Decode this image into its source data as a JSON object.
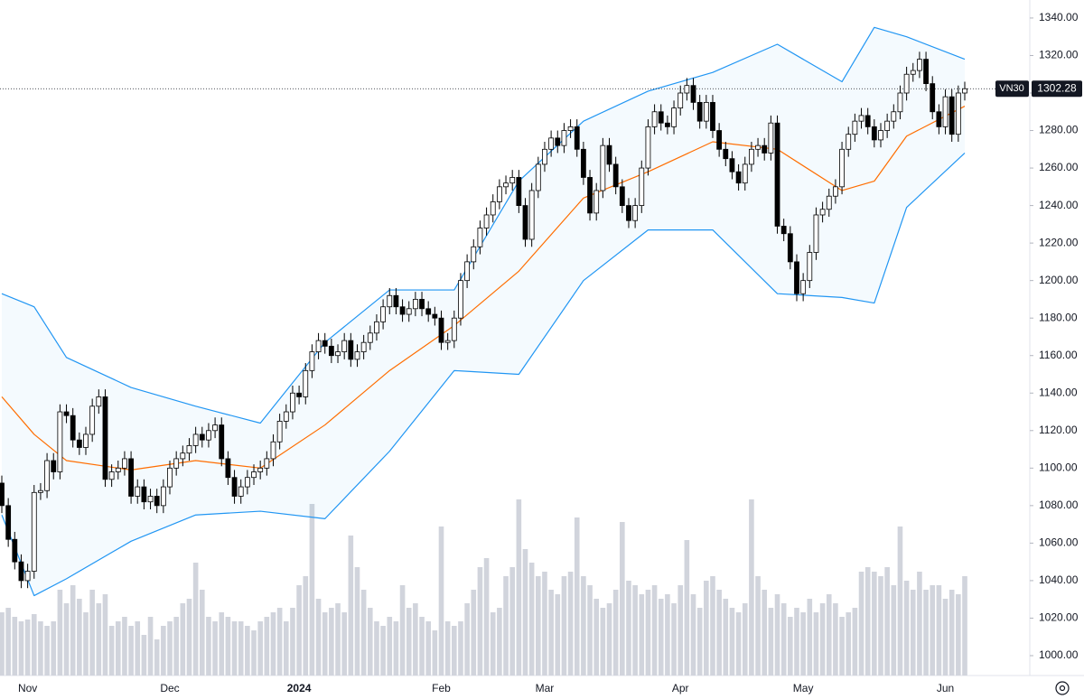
{
  "chart_data": {
    "type": "candlestick",
    "symbol": "VN30",
    "last_value": 1302.28,
    "categories": [
      null,
      null,
      null,
      null,
      "Nov",
      null,
      null,
      null,
      null,
      null,
      null,
      null,
      null,
      null,
      null,
      null,
      null,
      null,
      null,
      null,
      null,
      null,
      null,
      null,
      null,
      null,
      "Dec",
      null,
      null,
      null,
      null,
      null,
      null,
      null,
      null,
      null,
      null,
      null,
      null,
      null,
      null,
      null,
      null,
      null,
      null,
      null,
      "2024",
      null,
      null,
      null,
      null,
      null,
      null,
      null,
      null,
      null,
      null,
      null,
      null,
      null,
      null,
      null,
      null,
      null,
      null,
      null,
      null,
      null,
      "Feb",
      null,
      null,
      null,
      null,
      null,
      null,
      null,
      null,
      null,
      null,
      null,
      null,
      null,
      null,
      null,
      "Mar",
      null,
      null,
      null,
      null,
      null,
      null,
      null,
      null,
      null,
      null,
      null,
      null,
      null,
      null,
      null,
      null,
      null,
      null,
      null,
      null,
      "Apr",
      null,
      null,
      null,
      null,
      null,
      null,
      null,
      null,
      null,
      null,
      null,
      null,
      null,
      null,
      null,
      null,
      null,
      null,
      "May",
      null,
      null,
      null,
      null,
      null,
      null,
      null,
      null,
      null,
      null,
      null,
      null,
      null,
      null,
      null,
      null,
      null,
      null,
      null,
      null,
      null,
      "Jun",
      null,
      null,
      null
    ],
    "open": [
      1092,
      1080,
      1062,
      1050,
      1040,
      1045,
      1087,
      1088,
      1104,
      1098,
      1130,
      1128,
      1115,
      1111,
      1118,
      1133,
      1138,
      1094,
      1098,
      1100,
      1105,
      1085,
      1090,
      1082,
      1085,
      1080,
      1090,
      1100,
      1105,
      1108,
      1112,
      1118,
      1115,
      1120,
      1123,
      1105,
      1095,
      1085,
      1090,
      1095,
      1098,
      1100,
      1105,
      1114,
      1125,
      1130,
      1140,
      1138,
      1152,
      1162,
      1168,
      1165,
      1160,
      1162,
      1168,
      1158,
      1162,
      1167,
      1172,
      1178,
      1186,
      1192,
      1186,
      1182,
      1185,
      1190,
      1185,
      1182,
      1180,
      1167,
      1168,
      1180,
      1200,
      1210,
      1218,
      1228,
      1235,
      1242,
      1250,
      1252,
      1255,
      1240,
      1222,
      1248,
      1262,
      1270,
      1276,
      1272,
      1280,
      1282,
      1270,
      1255,
      1236,
      1248,
      1272,
      1262,
      1250,
      1240,
      1232,
      1240,
      1260,
      1282,
      1290,
      1284,
      1282,
      1292,
      1300,
      1304,
      1295,
      1285,
      1295,
      1280,
      1270,
      1265,
      1258,
      1252,
      1262,
      1270,
      1272,
      1268,
      1284,
      1229,
      1225,
      1210,
      1193,
      1200,
      1215,
      1235,
      1238,
      1245,
      1250,
      1270,
      1278,
      1285,
      1288,
      1282,
      1275,
      1280,
      1285,
      1290,
      1300,
      1310,
      1312,
      1318,
      1305,
      1290,
      1282,
      1298,
      1278,
      1300
    ],
    "high": [
      1096,
      1084,
      1066,
      1054,
      1049,
      1091,
      1092,
      1108,
      1108,
      1134,
      1134,
      1132,
      1119,
      1122,
      1137,
      1142,
      1142,
      1102,
      1104,
      1109,
      1109,
      1094,
      1094,
      1089,
      1089,
      1094,
      1104,
      1109,
      1112,
      1116,
      1122,
      1122,
      1124,
      1127,
      1127,
      1109,
      1099,
      1094,
      1099,
      1102,
      1104,
      1109,
      1118,
      1129,
      1134,
      1144,
      1144,
      1156,
      1166,
      1172,
      1172,
      1169,
      1166,
      1172,
      1172,
      1166,
      1171,
      1176,
      1182,
      1190,
      1196,
      1196,
      1190,
      1189,
      1194,
      1194,
      1189,
      1186,
      1184,
      1172,
      1184,
      1204,
      1214,
      1222,
      1232,
      1239,
      1246,
      1254,
      1256,
      1259,
      1259,
      1244,
      1252,
      1266,
      1274,
      1280,
      1280,
      1284,
      1286,
      1286,
      1274,
      1259,
      1252,
      1276,
      1276,
      1266,
      1254,
      1244,
      1244,
      1264,
      1286,
      1294,
      1294,
      1288,
      1296,
      1304,
      1308,
      1308,
      1299,
      1299,
      1299,
      1284,
      1274,
      1269,
      1262,
      1266,
      1274,
      1276,
      1276,
      1288,
      1288,
      1233,
      1229,
      1214,
      1204,
      1219,
      1239,
      1242,
      1249,
      1254,
      1274,
      1282,
      1289,
      1292,
      1292,
      1286,
      1284,
      1289,
      1294,
      1304,
      1314,
      1316,
      1322,
      1322,
      1309,
      1294,
      1302,
      1302,
      1304,
      1306
    ],
    "low": [
      1076,
      1058,
      1046,
      1036,
      1036,
      1041,
      1083,
      1084,
      1094,
      1094,
      1124,
      1111,
      1107,
      1107,
      1114,
      1129,
      1090,
      1090,
      1094,
      1096,
      1081,
      1081,
      1078,
      1078,
      1076,
      1076,
      1086,
      1096,
      1101,
      1104,
      1108,
      1111,
      1111,
      1116,
      1101,
      1091,
      1081,
      1081,
      1086,
      1091,
      1094,
      1096,
      1101,
      1110,
      1121,
      1126,
      1134,
      1134,
      1148,
      1158,
      1161,
      1156,
      1156,
      1158,
      1154,
      1154,
      1158,
      1163,
      1168,
      1174,
      1182,
      1182,
      1178,
      1178,
      1181,
      1181,
      1178,
      1176,
      1163,
      1163,
      1164,
      1176,
      1196,
      1206,
      1214,
      1224,
      1231,
      1238,
      1246,
      1248,
      1236,
      1218,
      1218,
      1244,
      1258,
      1266,
      1268,
      1268,
      1276,
      1266,
      1251,
      1232,
      1232,
      1244,
      1258,
      1246,
      1236,
      1228,
      1228,
      1236,
      1256,
      1278,
      1280,
      1278,
      1278,
      1288,
      1296,
      1291,
      1281,
      1281,
      1276,
      1266,
      1261,
      1254,
      1248,
      1248,
      1258,
      1266,
      1264,
      1264,
      1225,
      1221,
      1206,
      1189,
      1189,
      1196,
      1211,
      1231,
      1234,
      1241,
      1246,
      1266,
      1274,
      1281,
      1278,
      1271,
      1271,
      1276,
      1281,
      1286,
      1296,
      1306,
      1308,
      1301,
      1286,
      1278,
      1278,
      1274,
      1274,
      1296
    ],
    "close": [
      1080,
      1062,
      1050,
      1040,
      1045,
      1087,
      1088,
      1104,
      1098,
      1130,
      1128,
      1115,
      1111,
      1118,
      1133,
      1138,
      1094,
      1098,
      1100,
      1105,
      1085,
      1090,
      1082,
      1085,
      1080,
      1090,
      1100,
      1105,
      1108,
      1112,
      1118,
      1115,
      1120,
      1123,
      1105,
      1095,
      1085,
      1090,
      1095,
      1098,
      1100,
      1105,
      1114,
      1125,
      1130,
      1140,
      1138,
      1152,
      1162,
      1168,
      1165,
      1160,
      1162,
      1168,
      1158,
      1162,
      1167,
      1172,
      1178,
      1186,
      1192,
      1186,
      1182,
      1185,
      1190,
      1185,
      1182,
      1180,
      1167,
      1168,
      1180,
      1200,
      1210,
      1218,
      1228,
      1235,
      1242,
      1250,
      1252,
      1255,
      1240,
      1222,
      1248,
      1262,
      1270,
      1276,
      1272,
      1280,
      1282,
      1270,
      1255,
      1236,
      1248,
      1272,
      1262,
      1250,
      1240,
      1232,
      1240,
      1260,
      1282,
      1290,
      1284,
      1282,
      1292,
      1300,
      1304,
      1295,
      1285,
      1295,
      1280,
      1270,
      1265,
      1258,
      1252,
      1262,
      1270,
      1272,
      1268,
      1284,
      1229,
      1225,
      1210,
      1193,
      1200,
      1215,
      1235,
      1238,
      1245,
      1250,
      1270,
      1278,
      1285,
      1288,
      1282,
      1275,
      1280,
      1285,
      1290,
      1300,
      1310,
      1312,
      1318,
      1305,
      1290,
      1282,
      1298,
      1278,
      1300,
      1302.28
    ],
    "volume": [
      70,
      75,
      65,
      60,
      62,
      68,
      60,
      55,
      60,
      95,
      80,
      100,
      85,
      70,
      95,
      80,
      90,
      55,
      60,
      65,
      55,
      60,
      45,
      65,
      40,
      55,
      60,
      65,
      80,
      85,
      125,
      95,
      65,
      60,
      70,
      65,
      60,
      60,
      55,
      50,
      60,
      65,
      70,
      75,
      60,
      75,
      100,
      110,
      190,
      85,
      70,
      75,
      80,
      70,
      155,
      120,
      95,
      75,
      60,
      55,
      65,
      60,
      100,
      75,
      80,
      65,
      60,
      50,
      165,
      60,
      55,
      60,
      80,
      95,
      120,
      130,
      70,
      75,
      110,
      120,
      195,
      140,
      125,
      110,
      115,
      95,
      90,
      110,
      115,
      175,
      110,
      100,
      85,
      75,
      80,
      95,
      170,
      105,
      100,
      90,
      95,
      100,
      85,
      90,
      80,
      100,
      150,
      90,
      75,
      105,
      110,
      95,
      85,
      75,
      70,
      80,
      195,
      110,
      95,
      75,
      90,
      80,
      65,
      75,
      70,
      85,
      70,
      80,
      90,
      80,
      65,
      70,
      75,
      115,
      120,
      115,
      110,
      120,
      100,
      165,
      105,
      95,
      115,
      95,
      100,
      100,
      85,
      95,
      90,
      110
    ],
    "volume_lim": [
      0,
      250
    ],
    "volume_color": "#d1d4dc",
    "bollinger": {
      "x": [
        0,
        5,
        10,
        20,
        30,
        40,
        50,
        60,
        70,
        80,
        90,
        100,
        110,
        120,
        130,
        135,
        140,
        149
      ],
      "upper": [
        1193,
        1186,
        1159,
        1143,
        1133,
        1124,
        1167,
        1195,
        1195,
        1253,
        1285,
        1301,
        1311,
        1326,
        1306,
        1335,
        1330,
        1318
      ],
      "middle": [
        1138,
        1118,
        1104,
        1099,
        1104,
        1100,
        1123,
        1152,
        1176,
        1205,
        1244,
        1258,
        1274,
        1270,
        1248,
        1253,
        1277,
        1293
      ],
      "lower": [
        1075,
        1032,
        1041,
        1061,
        1075,
        1077,
        1073,
        1109,
        1152,
        1150,
        1200,
        1227,
        1227,
        1193,
        1191,
        1188,
        1239,
        1268
      ],
      "band_color": "#2196f3",
      "middle_color": "#ff6d00"
    },
    "up_color": "#ffffff",
    "down_color": "#000000",
    "ylim": [
      989.4,
      1349.6
    ],
    "yticks": [
      {
        "value": 1000,
        "label": "1000.00"
      },
      {
        "value": 1020,
        "label": "1020.00"
      },
      {
        "value": 1040,
        "label": "1040.00"
      },
      {
        "value": 1060,
        "label": "1060.00"
      },
      {
        "value": 1080,
        "label": "1080.00"
      },
      {
        "value": 1100,
        "label": "1100.00"
      },
      {
        "value": 1120,
        "label": "1120.00"
      },
      {
        "value": 1140,
        "label": "1140.00"
      },
      {
        "value": 1160,
        "label": "1160.00"
      },
      {
        "value": 1180,
        "label": "1180.00"
      },
      {
        "value": 1200,
        "label": "1200.00"
      },
      {
        "value": 1220,
        "label": "1220.00"
      },
      {
        "value": 1240,
        "label": "1240.00"
      },
      {
        "value": 1260,
        "label": "1260.00"
      },
      {
        "value": 1280,
        "label": "1280.00"
      },
      {
        "value": 1300,
        "label": "1300.00"
      },
      {
        "value": 1320,
        "label": "1320.00"
      },
      {
        "value": 1340,
        "label": "1340.00"
      }
    ],
    "grid": false
  }
}
